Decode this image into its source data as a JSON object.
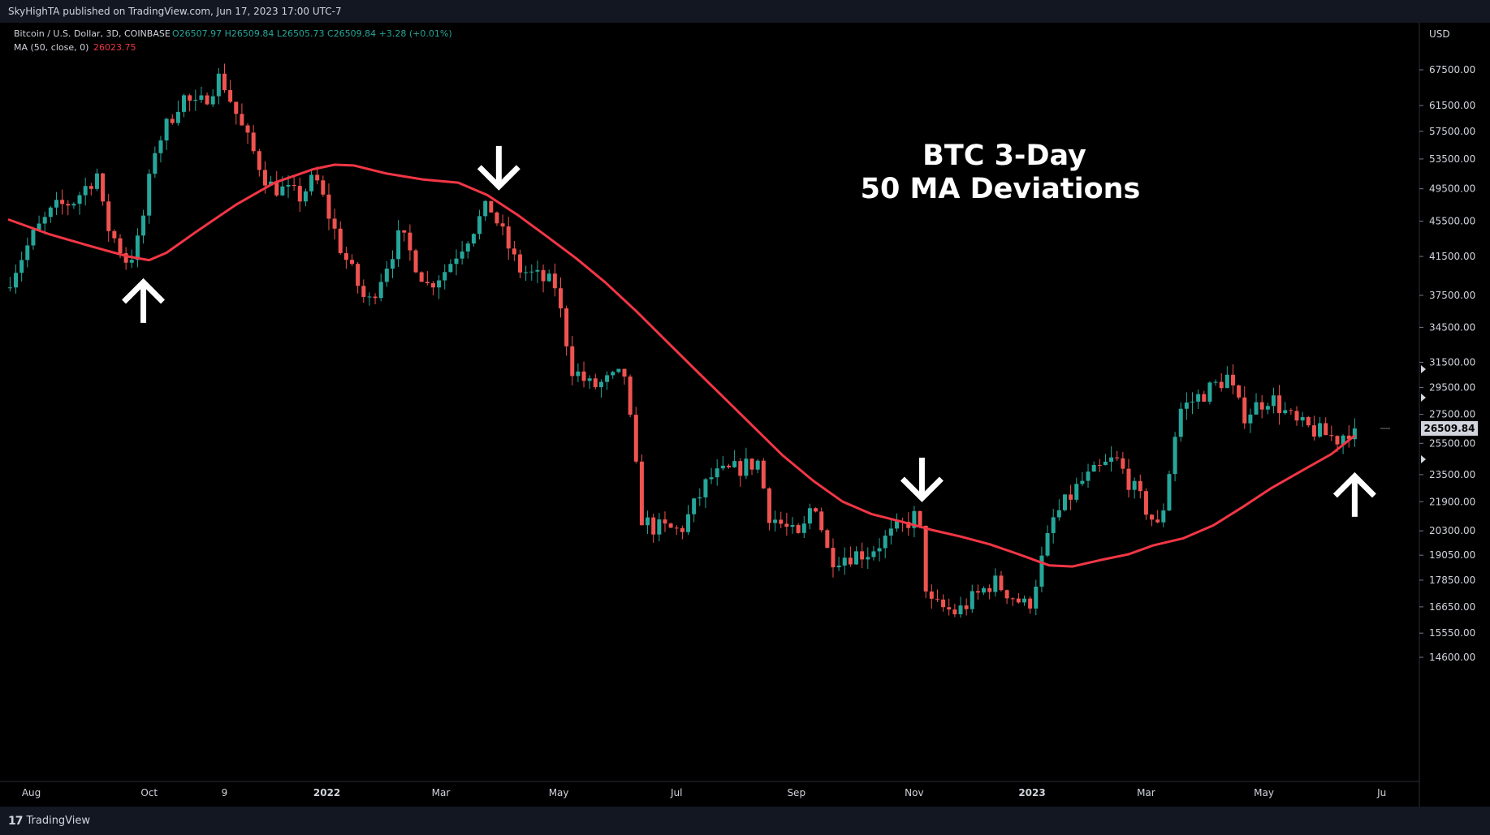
{
  "header": {
    "publish_line": "SkyHighTA published on TradingView.com, Jun 17, 2023 17:00 UTC-7"
  },
  "legend": {
    "symbol": "Bitcoin / U.S. Dollar, 3D, COINBASE",
    "ohlc_text": "O26507.97 H26509.84 L26505.73 C26509.84 +3.28 (+0.01%)",
    "ma_label": "MA (50, close, 0)",
    "ma_value": "26023.75"
  },
  "footer": {
    "brand": "TradingView"
  },
  "colors": {
    "up": "#26a69a",
    "down": "#ef5350",
    "ma": "#f23645",
    "price_tag": "#d1d4dc"
  },
  "chart_data": {
    "type": "candlestick",
    "title": "BTC 3-Day\n50 MA Deviations",
    "title_lines": [
      "BTC 3-Day",
      "50 MA Deviations"
    ],
    "currency_label": "USD",
    "y_scale": "log",
    "ylim": [
      14000,
      71000
    ],
    "y_ticks": [
      {
        "value": 67500,
        "label": "67500.00"
      },
      {
        "value": 61500,
        "label": "61500.00"
      },
      {
        "value": 57500,
        "label": "57500.00"
      },
      {
        "value": 53500,
        "label": "53500.00"
      },
      {
        "value": 49500,
        "label": "49500.00"
      },
      {
        "value": 45500,
        "label": "45500.00"
      },
      {
        "value": 41500,
        "label": "41500.00"
      },
      {
        "value": 37500,
        "label": "37500.00"
      },
      {
        "value": 34500,
        "label": "34500.00"
      },
      {
        "value": 31500,
        "label": "31500.00"
      },
      {
        "value": 29500,
        "label": "29500.00"
      },
      {
        "value": 27500,
        "label": "27500.00"
      },
      {
        "value": 25500,
        "label": "25500.00"
      },
      {
        "value": 23500,
        "label": "23500.00"
      },
      {
        "value": 21900,
        "label": "21900.00"
      },
      {
        "value": 20300,
        "label": "20300.00"
      },
      {
        "value": 19050,
        "label": "19050.00"
      },
      {
        "value": 17850,
        "label": "17850.00"
      },
      {
        "value": 16650,
        "label": "16650.00"
      },
      {
        "value": 15550,
        "label": "15550.00"
      },
      {
        "value": 14600,
        "label": "14600.00"
      }
    ],
    "x_ticks": [
      {
        "date": "2021-08-01",
        "label": "Aug",
        "bold": false
      },
      {
        "date": "2021-10-01",
        "label": "Oct",
        "bold": false
      },
      {
        "date": "2021-11-09",
        "label": "9",
        "bold": false
      },
      {
        "date": "2022-01-01",
        "label": "2022",
        "bold": true
      },
      {
        "date": "2022-03-01",
        "label": "Mar",
        "bold": false
      },
      {
        "date": "2022-05-01",
        "label": "May",
        "bold": false
      },
      {
        "date": "2022-07-01",
        "label": "Jul",
        "bold": false
      },
      {
        "date": "2022-09-01",
        "label": "Sep",
        "bold": false
      },
      {
        "date": "2022-11-01",
        "label": "Nov",
        "bold": false
      },
      {
        "date": "2023-01-01",
        "label": "2023",
        "bold": true
      },
      {
        "date": "2023-03-01",
        "label": "Mar",
        "bold": false
      },
      {
        "date": "2023-05-01",
        "label": "May",
        "bold": false
      },
      {
        "date": "2023-07-01",
        "label": "Ju",
        "bold": false
      }
    ],
    "last_price": {
      "value": 26509.84,
      "label": "26509.84"
    },
    "arrows": [
      {
        "direction": "up",
        "date": "2021-09-28",
        "price": 36800
      },
      {
        "direction": "down",
        "date": "2022-03-31",
        "price": 52500
      },
      {
        "direction": "down",
        "date": "2022-11-05",
        "price": 23300
      },
      {
        "direction": "up",
        "date": "2023-06-17",
        "price": 22200
      }
    ],
    "ma_series": {
      "name": "MA (50, close, 0)",
      "points": [
        [
          "2021-07-20",
          45700
        ],
        [
          "2021-08-10",
          44000
        ],
        [
          "2021-09-01",
          42600
        ],
        [
          "2021-09-20",
          41500
        ],
        [
          "2021-10-01",
          41100
        ],
        [
          "2021-10-10",
          41900
        ],
        [
          "2021-10-25",
          44200
        ],
        [
          "2021-11-15",
          47500
        ],
        [
          "2021-12-05",
          50300
        ],
        [
          "2021-12-25",
          52100
        ],
        [
          "2022-01-05",
          52700
        ],
        [
          "2022-01-15",
          52600
        ],
        [
          "2022-02-01",
          51500
        ],
        [
          "2022-02-20",
          50700
        ],
        [
          "2022-03-10",
          50300
        ],
        [
          "2022-03-25",
          48700
        ],
        [
          "2022-04-10",
          46200
        ],
        [
          "2022-04-25",
          43700
        ],
        [
          "2022-05-10",
          41300
        ],
        [
          "2022-05-25",
          38800
        ],
        [
          "2022-06-10",
          36000
        ],
        [
          "2022-06-25",
          33400
        ],
        [
          "2022-07-10",
          31000
        ],
        [
          "2022-07-25",
          28800
        ],
        [
          "2022-08-10",
          26600
        ],
        [
          "2022-08-25",
          24700
        ],
        [
          "2022-09-10",
          23100
        ],
        [
          "2022-09-25",
          21900
        ],
        [
          "2022-10-10",
          21200
        ],
        [
          "2022-10-25",
          20800
        ],
        [
          "2022-11-10",
          20350
        ],
        [
          "2022-11-25",
          20000
        ],
        [
          "2022-12-10",
          19600
        ],
        [
          "2022-12-25",
          19100
        ],
        [
          "2023-01-10",
          18550
        ],
        [
          "2023-01-22",
          18500
        ],
        [
          "2023-02-05",
          18800
        ],
        [
          "2023-02-20",
          19100
        ],
        [
          "2023-03-05",
          19550
        ],
        [
          "2023-03-20",
          19900
        ],
        [
          "2023-04-05",
          20600
        ],
        [
          "2023-04-20",
          21600
        ],
        [
          "2023-05-05",
          22700
        ],
        [
          "2023-05-20",
          23700
        ],
        [
          "2023-06-05",
          24800
        ],
        [
          "2023-06-17",
          26023.75
        ]
      ]
    },
    "candle_anchors": [
      [
        "2021-07-20",
        38200
      ],
      [
        "2021-08-05",
        44200
      ],
      [
        "2021-08-15",
        47000
      ],
      [
        "2021-08-25",
        48000
      ],
      [
        "2021-09-06",
        51500
      ],
      [
        "2021-09-10",
        45500
      ],
      [
        "2021-09-22",
        40800
      ],
      [
        "2021-09-28",
        43500
      ],
      [
        "2021-10-06",
        55000
      ],
      [
        "2021-10-20",
        63000
      ],
      [
        "2021-10-28",
        61000
      ],
      [
        "2021-11-09",
        66500
      ],
      [
        "2021-11-20",
        58000
      ],
      [
        "2021-12-04",
        50000
      ],
      [
        "2021-12-20",
        48500
      ],
      [
        "2021-12-28",
        51000
      ],
      [
        "2022-01-10",
        42500
      ],
      [
        "2022-01-24",
        36500
      ],
      [
        "2022-02-10",
        44000
      ],
      [
        "2022-02-24",
        38500
      ],
      [
        "2022-03-05",
        40000
      ],
      [
        "2022-03-28",
        47500
      ],
      [
        "2022-04-12",
        40200
      ],
      [
        "2022-05-01",
        38500
      ],
      [
        "2022-05-10",
        31000
      ],
      [
        "2022-05-20",
        29500
      ],
      [
        "2022-06-06",
        30500
      ],
      [
        "2022-06-15",
        21000
      ],
      [
        "2022-06-20",
        20500
      ],
      [
        "2022-07-05",
        20300
      ],
      [
        "2022-07-20",
        23300
      ],
      [
        "2022-08-14",
        24300
      ],
      [
        "2022-08-20",
        21200
      ],
      [
        "2022-09-05",
        19800
      ],
      [
        "2022-09-12",
        22200
      ],
      [
        "2022-09-20",
        18900
      ],
      [
        "2022-10-10",
        19200
      ],
      [
        "2022-11-05",
        21200
      ],
      [
        "2022-11-10",
        16800
      ],
      [
        "2022-11-25",
        16400
      ],
      [
        "2022-12-14",
        17800
      ],
      [
        "2023-01-01",
        16600
      ],
      [
        "2023-01-14",
        20900
      ],
      [
        "2023-01-28",
        23000
      ],
      [
        "2023-02-15",
        24500
      ],
      [
        "2023-03-10",
        20300
      ],
      [
        "2023-03-20",
        27800
      ],
      [
        "2023-04-14",
        30300
      ],
      [
        "2023-04-22",
        27400
      ],
      [
        "2023-05-06",
        28800
      ],
      [
        "2023-05-20",
        26800
      ],
      [
        "2023-06-10",
        25800
      ],
      [
        "2023-06-17",
        26509.84
      ]
    ]
  }
}
